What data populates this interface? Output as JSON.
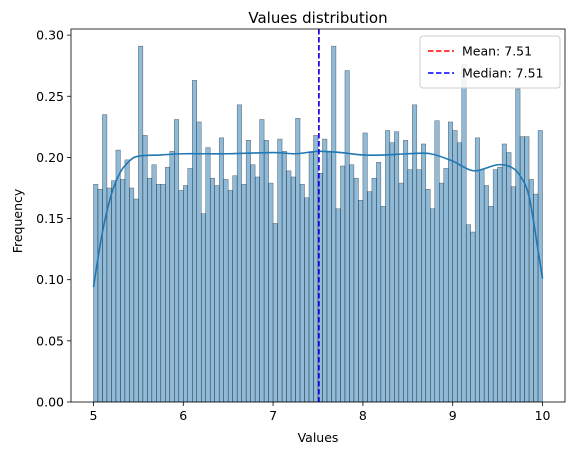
{
  "chart_data": {
    "type": "bar",
    "title": "Values distribution",
    "xlabel": "Values",
    "ylabel": "Frequency",
    "xlim": [
      4.75,
      10.25
    ],
    "ylim": [
      0,
      0.305
    ],
    "xticks": [
      5,
      6,
      7,
      8,
      9,
      10
    ],
    "yticks": [
      0.0,
      0.05,
      0.1,
      0.15,
      0.2,
      0.25,
      0.3
    ],
    "bins": {
      "start": 5.0,
      "end": 10.0,
      "count": 100
    },
    "values": [
      0.178,
      0.174,
      0.235,
      0.175,
      0.181,
      0.206,
      0.182,
      0.198,
      0.175,
      0.166,
      0.291,
      0.218,
      0.183,
      0.194,
      0.178,
      0.178,
      0.192,
      0.205,
      0.231,
      0.173,
      0.177,
      0.191,
      0.263,
      0.229,
      0.154,
      0.208,
      0.183,
      0.177,
      0.216,
      0.182,
      0.173,
      0.185,
      0.243,
      0.178,
      0.214,
      0.194,
      0.184,
      0.231,
      0.214,
      0.179,
      0.146,
      0.215,
      0.205,
      0.189,
      0.184,
      0.232,
      0.178,
      0.167,
      0.204,
      0.218,
      0.187,
      0.215,
      0.205,
      0.291,
      0.158,
      0.193,
      0.271,
      0.194,
      0.183,
      0.165,
      0.22,
      0.172,
      0.183,
      0.196,
      0.16,
      0.222,
      0.212,
      0.221,
      0.179,
      0.214,
      0.19,
      0.243,
      0.19,
      0.211,
      0.174,
      0.158,
      0.23,
      0.179,
      0.191,
      0.229,
      0.222,
      0.212,
      0.276,
      0.145,
      0.139,
      0.216,
      0.19,
      0.177,
      0.16,
      0.19,
      0.192,
      0.211,
      0.204,
      0.176,
      0.256,
      0.217,
      0.217,
      0.182,
      0.17,
      0.222
    ],
    "kde": {
      "x": [
        5.0,
        5.1,
        5.2,
        5.3,
        5.4,
        5.5,
        5.75,
        6.0,
        6.5,
        7.0,
        7.25,
        7.5,
        7.75,
        8.0,
        8.25,
        8.5,
        8.75,
        9.0,
        9.1,
        9.25,
        9.5,
        9.65,
        9.75,
        9.85,
        9.95,
        10.0
      ],
      "y": [
        0.094,
        0.139,
        0.17,
        0.188,
        0.197,
        0.201,
        0.202,
        0.203,
        0.203,
        0.204,
        0.203,
        0.205,
        0.204,
        0.202,
        0.202,
        0.203,
        0.203,
        0.197,
        0.193,
        0.189,
        0.194,
        0.192,
        0.185,
        0.168,
        0.124,
        0.101
      ]
    },
    "mean": 7.51,
    "median": 7.51,
    "legend": {
      "position": "top-right",
      "entries": [
        {
          "label": "Mean: 7.51",
          "color": "#ff0000",
          "style": "dashed"
        },
        {
          "label": "Median: 7.51",
          "color": "#0000ff",
          "style": "dashed"
        }
      ]
    },
    "colors": {
      "bar_fill": "#1f77b4",
      "bar_alpha": 0.5,
      "bar_edge": "#000000",
      "kde_line": "#1f77b4"
    },
    "grid": false
  }
}
